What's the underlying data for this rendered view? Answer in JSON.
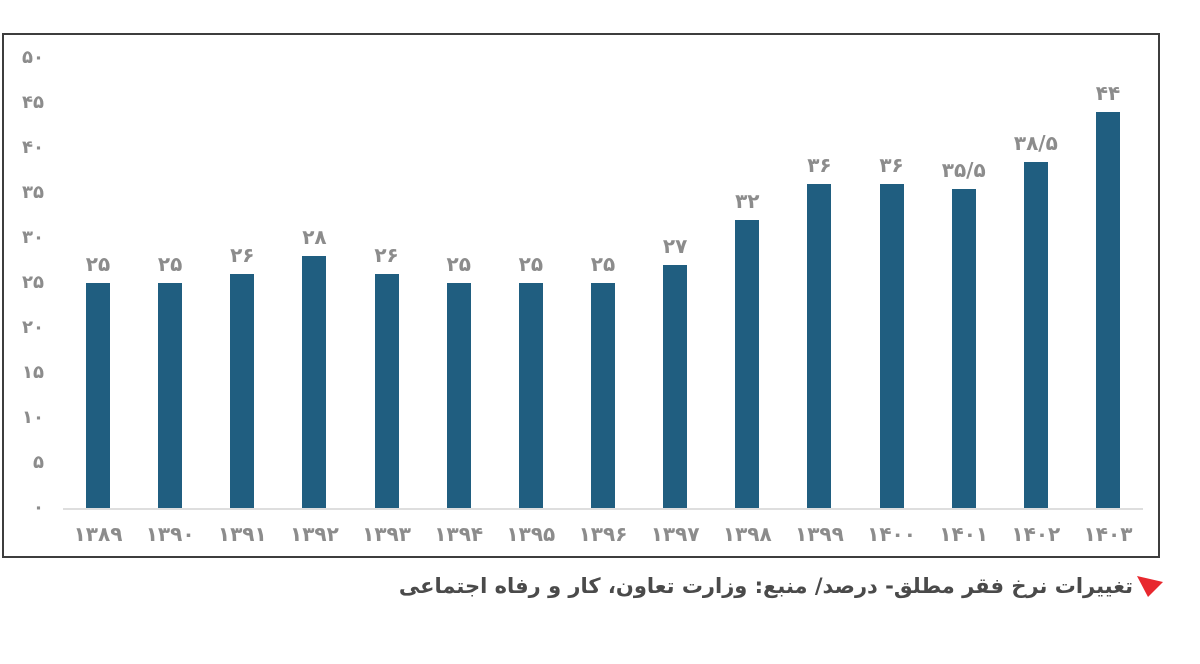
{
  "chart_data": {
    "type": "bar",
    "title": "",
    "categories": [
      "۱۳۸۹",
      "۱۳۹۰",
      "۱۳۹۱",
      "۱۳۹۲",
      "۱۳۹۳",
      "۱۳۹۴",
      "۱۳۹۵",
      "۱۳۹۶",
      "۱۳۹۷",
      "۱۳۹۸",
      "۱۳۹۹",
      "۱۴۰۰",
      "۱۴۰۱",
      "۱۴۰۲",
      "۱۴۰۳"
    ],
    "values": [
      25,
      25,
      26,
      28,
      26,
      25,
      25,
      25,
      27,
      32,
      36,
      36,
      35.5,
      38.5,
      44
    ],
    "value_labels": [
      "۲۵",
      "۲۵",
      "۲۶",
      "۲۸",
      "۲۶",
      "۲۵",
      "۲۵",
      "۲۵",
      "۲۷",
      "۳۲",
      "۳۶",
      "۳۶",
      "۳۵/۵",
      "۳۸/۵",
      "۴۴"
    ],
    "xlabel": "",
    "ylabel": "",
    "ylim": [
      0,
      50
    ],
    "y_ticks": [
      {
        "value": 50,
        "label": "۵۰"
      },
      {
        "value": 45,
        "label": "۴۵"
      },
      {
        "value": 40,
        "label": "۴۰"
      },
      {
        "value": 35,
        "label": "۳۵"
      },
      {
        "value": 30,
        "label": "۳۰"
      },
      {
        "value": 25,
        "label": "۲۵"
      },
      {
        "value": 20,
        "label": "۲۰"
      },
      {
        "value": 15,
        "label": "۱۵"
      },
      {
        "value": 10,
        "label": "۱۰"
      },
      {
        "value": 5,
        "label": "۵"
      },
      {
        "value": 0,
        "label": "۰"
      }
    ],
    "grid": false,
    "legend": "none",
    "bar_color": "#205e80",
    "label_color": "#8c8c8c"
  },
  "caption": {
    "text": "تغییرات نرخ فقر مطلق- درصد/ منبع: وزارت تعاون، کار و رفاه اجتماعی",
    "marker_color": "#e8282e"
  }
}
